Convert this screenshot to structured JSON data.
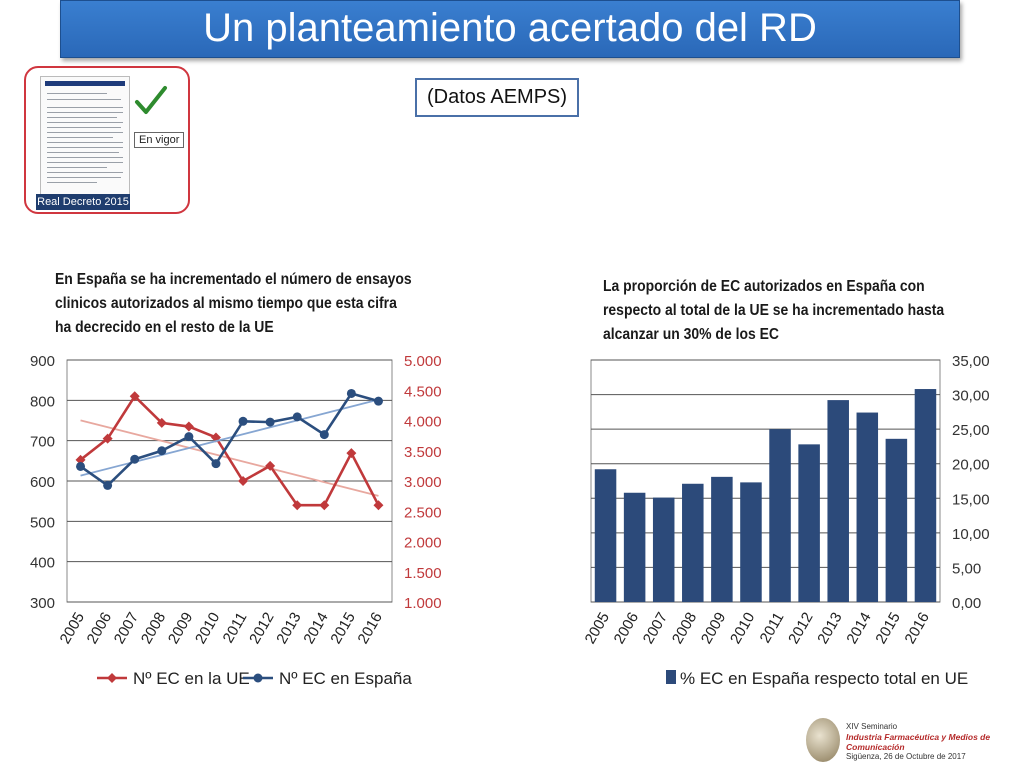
{
  "slide": {
    "title": "Un planteamiento acertado del RD",
    "source_label": "(Datos AEMPS)",
    "thumb_tag_status": "En vigor",
    "thumb_tag_decree": "Real Decreto 2015",
    "doc_header": "BOLETÍN OFICIAL DEL ESTADO",
    "logo": {
      "line1": "XIV Seminario",
      "line2": "Industria Farmacéutica y Medios de Comunicación",
      "line3": "Sigüenza, 26 de Octubre de 2017"
    }
  },
  "colors": {
    "title_bg": "#2e6fc4",
    "ue_series": "#c0393b",
    "es_series": "#2b4e7e",
    "bar_fill": "#2c4a7a",
    "right_axis_text": "#c0393b"
  },
  "chart_data": [
    {
      "type": "line",
      "caption": "En España se ha incrementado el número de ensayos clinicos autorizados al mismo tiempo que esta cifra ha decrecido en el resto de la UE",
      "categories": [
        "2005",
        "2006",
        "2007",
        "2008",
        "2009",
        "2010",
        "2011",
        "2012",
        "2013",
        "2014",
        "2015",
        "2016"
      ],
      "y_left": {
        "range": [
          300,
          900
        ],
        "ticks": [
          "300",
          "400",
          "500",
          "600",
          "700",
          "800",
          "900"
        ]
      },
      "y_right": {
        "range": [
          1000,
          5000
        ],
        "ticks": [
          "1.000",
          "1.500",
          "2.000",
          "2.500",
          "3.000",
          "3.500",
          "4.000",
          "4.500",
          "5.000"
        ]
      },
      "series": [
        {
          "name": "Nº EC en la UE",
          "axis": "right",
          "values": [
            3350,
            3700,
            4400,
            3960,
            3900,
            3720,
            3000,
            3250,
            2600,
            2600,
            3460,
            2600
          ],
          "trendline": true
        },
        {
          "name": "Nº EC en España",
          "axis": "left",
          "values": [
            636,
            589,
            654,
            675,
            710,
            643,
            748,
            746,
            759,
            715,
            817,
            798
          ],
          "trendline": true
        }
      ],
      "grid": true,
      "legend": "bottom"
    },
    {
      "type": "bar",
      "caption": "La proporción de EC autorizados en España con respecto al total de la UE se ha incrementado hasta alcanzar un 30% de los EC",
      "categories": [
        "2005",
        "2006",
        "2007",
        "2008",
        "2009",
        "2010",
        "2011",
        "2012",
        "2013",
        "2014",
        "2015",
        "2016"
      ],
      "series": [
        {
          "name": "% EC en España respecto total en UE",
          "values": [
            19.2,
            15.8,
            15.1,
            17.1,
            18.1,
            17.3,
            25.0,
            22.8,
            29.2,
            27.4,
            23.6,
            30.8
          ]
        }
      ],
      "y_right": {
        "range": [
          0,
          35
        ],
        "ticks": [
          "0,00",
          "5,00",
          "10,00",
          "15,00",
          "20,00",
          "25,00",
          "30,00",
          "35,00"
        ]
      },
      "grid": true,
      "legend": "bottom"
    }
  ]
}
